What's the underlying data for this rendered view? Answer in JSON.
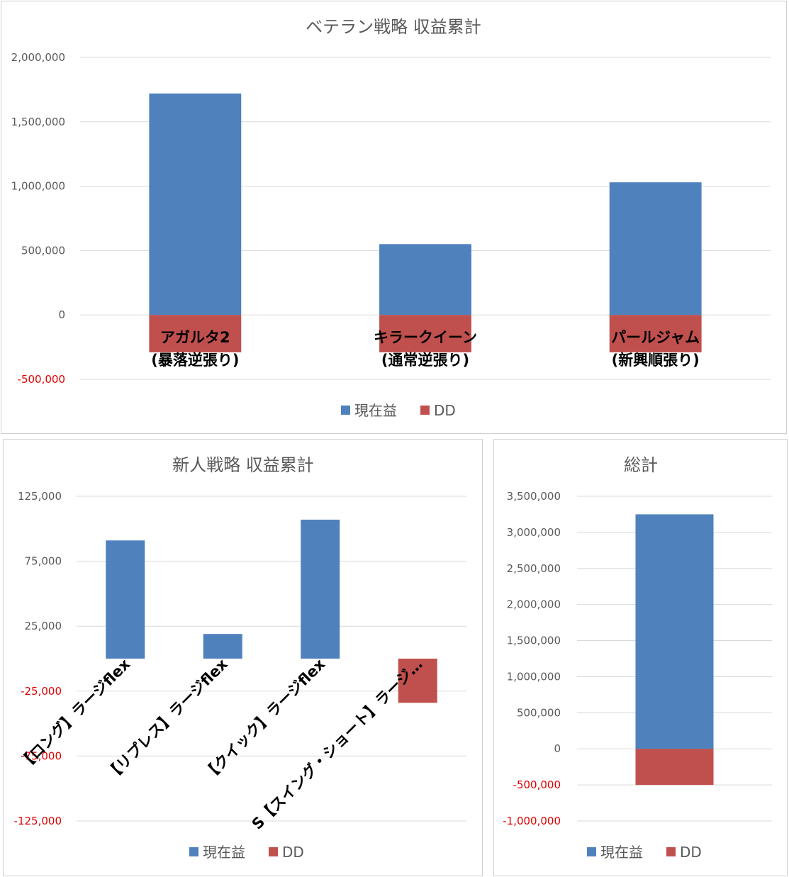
{
  "colors": {
    "current": "#4f81bd",
    "dd": "#c0504d",
    "neg_tick": "#e00000"
  },
  "chart_data": [
    {
      "type": "bar",
      "title": "ベテラン戦略 収益累計",
      "categories": [
        [
          "アガルタ2",
          "(暴落逆張り)"
        ],
        [
          "キラークイーン",
          "(通常逆張り)"
        ],
        [
          "パールジャム",
          "(新興順張り)"
        ]
      ],
      "series": [
        {
          "name": "現在益",
          "values": [
            1720000,
            550000,
            1030000
          ]
        },
        {
          "name": "DD",
          "values": [
            -290000,
            -290000,
            -290000
          ]
        }
      ],
      "ylim": [
        -500000,
        2000000
      ],
      "yticks": [
        {
          "v": 2000000,
          "label": "2,000,000"
        },
        {
          "v": 1500000,
          "label": "1,500,000"
        },
        {
          "v": 1000000,
          "label": "1,000,000"
        },
        {
          "v": 500000,
          "label": "500,000"
        },
        {
          "v": 0,
          "label": "0"
        },
        {
          "v": -500000,
          "label": "-500,000"
        }
      ],
      "legend": "bottom",
      "grid": true
    },
    {
      "type": "bar",
      "title": "新人戦略 収益累計",
      "categories": [
        "【ロング】ラージflex",
        "【リプレス】ラージflex",
        "【クイック】ラージflex",
        "S【スイング・ショート】ラージ…"
      ],
      "series": [
        {
          "name": "現在益",
          "values": [
            91000,
            19000,
            107000,
            0
          ]
        },
        {
          "name": "DD",
          "values": [
            0,
            0,
            0,
            -34000
          ]
        }
      ],
      "ylim": [
        -125000,
        125000
      ],
      "yticks": [
        {
          "v": 125000,
          "label": "125,000"
        },
        {
          "v": 75000,
          "label": "75,000"
        },
        {
          "v": 25000,
          "label": "25,000"
        },
        {
          "v": -25000,
          "label": "-25,000"
        },
        {
          "v": -75000,
          "label": "-75,000"
        },
        {
          "v": -125000,
          "label": "-125,000"
        }
      ],
      "legend": "bottom",
      "grid": true
    },
    {
      "type": "bar",
      "title": "総計",
      "categories": [
        ""
      ],
      "series": [
        {
          "name": "現在益",
          "values": [
            3250000
          ]
        },
        {
          "name": "DD",
          "values": [
            -500000
          ]
        }
      ],
      "ylim": [
        -1000000,
        3500000
      ],
      "yticks": [
        {
          "v": 3500000,
          "label": "3,500,000"
        },
        {
          "v": 3000000,
          "label": "3,000,000"
        },
        {
          "v": 2500000,
          "label": "2,500,000"
        },
        {
          "v": 2000000,
          "label": "2,000,000"
        },
        {
          "v": 1500000,
          "label": "1,500,000"
        },
        {
          "v": 1000000,
          "label": "1,000,000"
        },
        {
          "v": 500000,
          "label": "500,000"
        },
        {
          "v": 0,
          "label": "0"
        },
        {
          "v": -500000,
          "label": "-500,000"
        },
        {
          "v": -1000000,
          "label": "-1,000,000"
        }
      ],
      "legend": "bottom",
      "grid": true
    }
  ]
}
